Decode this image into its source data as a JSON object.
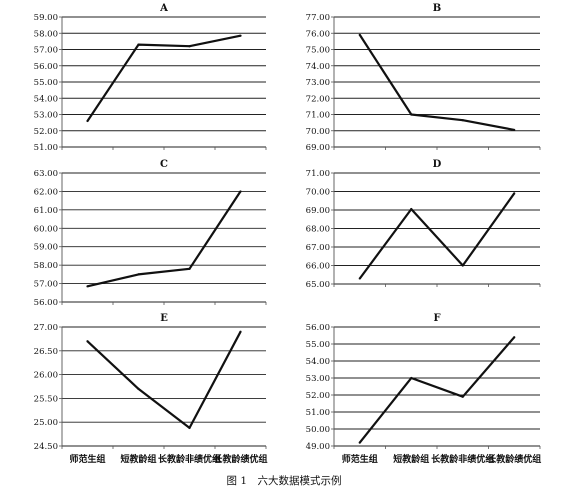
{
  "caption": "图 1　六大数据模式示例",
  "chart_data": [
    {
      "type": "line",
      "title": "A",
      "categories": [
        "师范生组",
        "短教龄组",
        "长教龄非绩优组",
        "长教龄绩优组"
      ],
      "values": [
        52.6,
        57.3,
        57.2,
        57.85
      ],
      "ylim": [
        51.0,
        59.0
      ],
      "yticks": [
        "51.00",
        "52.00",
        "53.00",
        "54.00",
        "55.00",
        "56.00",
        "57.00",
        "58.00",
        "59.00"
      ],
      "grid": true,
      "category_labels_shown": false
    },
    {
      "type": "line",
      "title": "B",
      "categories": [
        "师范生组",
        "短教龄组",
        "长教龄非绩优组",
        "长教龄绩优组"
      ],
      "values": [
        75.9,
        71.0,
        70.65,
        70.05
      ],
      "ylim": [
        69.0,
        77.0
      ],
      "yticks": [
        "69.00",
        "70.00",
        "71.00",
        "72.00",
        "73.00",
        "74.00",
        "75.00",
        "76.00",
        "77.00"
      ],
      "grid": true,
      "category_labels_shown": false
    },
    {
      "type": "line",
      "title": "C",
      "categories": [
        "师范生组",
        "短教龄组",
        "长教龄非绩优组",
        "长教龄绩优组"
      ],
      "values": [
        56.85,
        57.5,
        57.8,
        62.0
      ],
      "ylim": [
        56.0,
        63.0
      ],
      "yticks": [
        "56.00",
        "57.00",
        "58.00",
        "59.00",
        "60.00",
        "61.00",
        "62.00",
        "63.00"
      ],
      "grid": true,
      "category_labels_shown": false
    },
    {
      "type": "line",
      "title": "D",
      "categories": [
        "师范生组",
        "短教龄组",
        "长教龄非绩优组",
        "长教龄绩优组"
      ],
      "values": [
        65.3,
        69.05,
        66.0,
        69.9
      ],
      "ylim": [
        65.0,
        71.0
      ],
      "yticks": [
        "65.00",
        "66.00",
        "67.00",
        "68.00",
        "69.00",
        "70.00",
        "71.00"
      ],
      "grid": true,
      "category_labels_shown": false
    },
    {
      "type": "line",
      "title": "E",
      "categories": [
        "师范生组",
        "短教龄组",
        "长教龄非绩优组",
        "长教龄绩优组"
      ],
      "values": [
        26.7,
        25.7,
        24.88,
        26.9
      ],
      "ylim": [
        24.5,
        27.0
      ],
      "yticks": [
        "24.50",
        "25.00",
        "25.50",
        "26.00",
        "26.50",
        "27.00"
      ],
      "grid": true,
      "category_labels_shown": true
    },
    {
      "type": "line",
      "title": "F",
      "categories": [
        "师范生组",
        "短教龄组",
        "长教龄非绩优组",
        "长教龄绩优组"
      ],
      "values": [
        49.2,
        53.0,
        51.9,
        55.4
      ],
      "ylim": [
        49.0,
        56.0
      ],
      "yticks": [
        "49.00",
        "50.00",
        "51.00",
        "52.00",
        "53.00",
        "54.00",
        "55.00",
        "56.00"
      ],
      "grid": true,
      "category_labels_shown": true
    }
  ],
  "colors": {
    "line": "#111111",
    "grid": "#222222",
    "axis": "#555555",
    "background": "#ffffff"
  }
}
